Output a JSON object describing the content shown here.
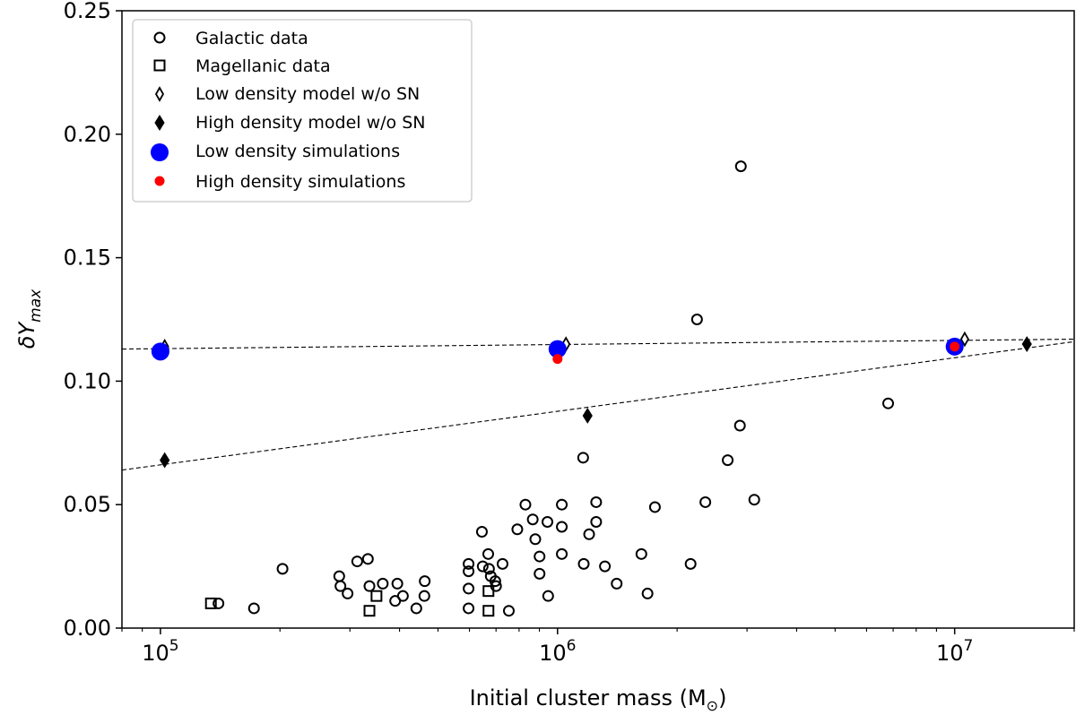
{
  "chart_data": {
    "type": "scatter",
    "xscale": "log",
    "xlim": [
      80000,
      20000000
    ],
    "ylim": [
      0,
      0.25
    ],
    "xlabel": "Initial cluster mass (M",
    "xlabel_sym": "⊙",
    "xlabel_close": ")",
    "ylabel_main": "δY",
    "ylabel_sub": "max",
    "grid": false,
    "legend_position": "top-left",
    "yticks": [
      {
        "value": 0.0,
        "label": "0.00"
      },
      {
        "value": 0.05,
        "label": "0.05"
      },
      {
        "value": 0.1,
        "label": "0.10"
      },
      {
        "value": 0.15,
        "label": "0.15"
      },
      {
        "value": 0.2,
        "label": "0.20"
      },
      {
        "value": 0.25,
        "label": "0.25"
      }
    ],
    "xticks": [
      {
        "value": 100000,
        "base": "10",
        "exp": "5"
      },
      {
        "value": 1000000,
        "base": "10",
        "exp": "6"
      },
      {
        "value": 10000000,
        "base": "10",
        "exp": "7"
      }
    ],
    "series": [
      {
        "name": "Galactic data",
        "marker": "circle",
        "points": [
          [
            140000,
            0.01
          ],
          [
            172000,
            0.008
          ],
          [
            203000,
            0.024
          ],
          [
            282000,
            0.021
          ],
          [
            284000,
            0.017
          ],
          [
            296000,
            0.014
          ],
          [
            313000,
            0.027
          ],
          [
            333000,
            0.028
          ],
          [
            336000,
            0.017
          ],
          [
            363000,
            0.018
          ],
          [
            390000,
            0.011
          ],
          [
            395000,
            0.018
          ],
          [
            408000,
            0.013
          ],
          [
            441000,
            0.008
          ],
          [
            462000,
            0.013
          ],
          [
            463000,
            0.019
          ],
          [
            597000,
            0.026
          ],
          [
            597000,
            0.023
          ],
          [
            597000,
            0.016
          ],
          [
            597000,
            0.008
          ],
          [
            645000,
            0.039
          ],
          [
            648000,
            0.025
          ],
          [
            669000,
            0.03
          ],
          [
            672000,
            0.024
          ],
          [
            679000,
            0.021
          ],
          [
            697000,
            0.019
          ],
          [
            700000,
            0.017
          ],
          [
            727000,
            0.026
          ],
          [
            754000,
            0.007
          ],
          [
            792000,
            0.04
          ],
          [
            830000,
            0.05
          ],
          [
            866000,
            0.044
          ],
          [
            879000,
            0.036
          ],
          [
            901000,
            0.029
          ],
          [
            901000,
            0.022
          ],
          [
            943000,
            0.043
          ],
          [
            947000,
            0.013
          ],
          [
            1025000,
            0.05
          ],
          [
            1025000,
            0.041
          ],
          [
            1025000,
            0.03
          ],
          [
            1160000,
            0.069
          ],
          [
            1164000,
            0.026
          ],
          [
            1201000,
            0.038
          ],
          [
            1251000,
            0.051
          ],
          [
            1251000,
            0.043
          ],
          [
            1316000,
            0.025
          ],
          [
            1409000,
            0.018
          ],
          [
            1626000,
            0.03
          ],
          [
            1685000,
            0.014
          ],
          [
            1759000,
            0.049
          ],
          [
            2163000,
            0.026
          ],
          [
            2245000,
            0.125
          ],
          [
            2356000,
            0.051
          ],
          [
            2682000,
            0.068
          ],
          [
            2879000,
            0.082
          ],
          [
            2895000,
            0.187
          ],
          [
            3129000,
            0.052
          ],
          [
            6800000,
            0.091
          ]
        ]
      },
      {
        "name": "Magellanic data",
        "marker": "square",
        "points": [
          [
            134000,
            0.01
          ],
          [
            336000,
            0.007
          ],
          [
            350000,
            0.013
          ],
          [
            670000,
            0.015
          ],
          [
            670000,
            0.007
          ]
        ]
      },
      {
        "name": "Low density model w/o SN",
        "marker": "diamond-open",
        "points": [
          [
            102500,
            0.114
          ],
          [
            1050000,
            0.115
          ],
          [
            10600000,
            0.117
          ]
        ]
      },
      {
        "name": "High density model w/o SN",
        "marker": "diamond-filled",
        "points": [
          [
            102500,
            0.068
          ],
          [
            1190000,
            0.086
          ],
          [
            15200000,
            0.115
          ]
        ]
      },
      {
        "name": "Low density simulations",
        "marker": "circle-blue",
        "color": "#0000ff",
        "points": [
          [
            100000,
            0.112
          ],
          [
            1000000,
            0.113
          ],
          [
            10000000,
            0.114
          ]
        ]
      },
      {
        "name": "High density simulations",
        "marker": "circle-red",
        "color": "#ff0000",
        "points": [
          [
            1000000,
            0.109
          ],
          [
            10000000,
            0.114
          ]
        ]
      }
    ],
    "fit_lines": [
      {
        "name": "low-density-fit",
        "start": [
          80000,
          0.113
        ],
        "end": [
          20000000,
          0.117
        ]
      },
      {
        "name": "high-density-fit",
        "start": [
          80000,
          0.064
        ],
        "end": [
          20000000,
          0.116
        ]
      }
    ]
  }
}
